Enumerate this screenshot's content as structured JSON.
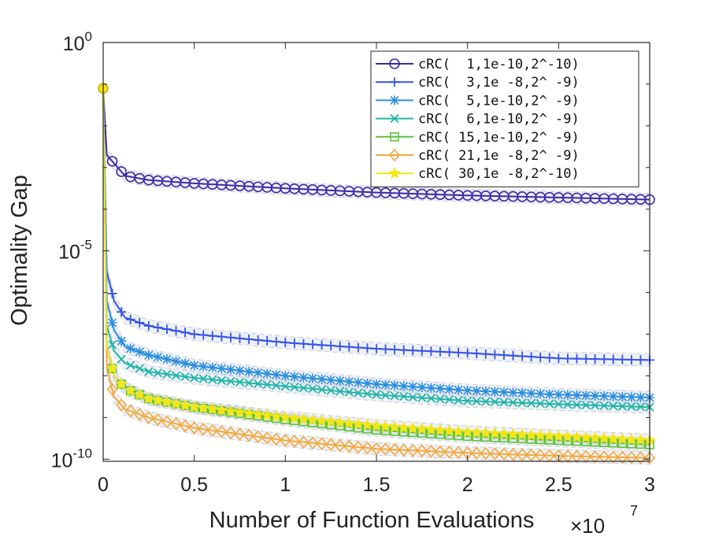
{
  "chart_data": {
    "type": "line",
    "xlabel": "Number of Function Evaluations",
    "x_multiplier": "×10",
    "x_multiplier_exp": "7",
    "ylabel": "Optimality Gap",
    "yscale": "log",
    "xlim": [
      0,
      3
    ],
    "ylim_log10": [
      -10.05,
      0
    ],
    "x_ticks": [
      "0",
      "0.5",
      "1",
      "1.5",
      "2",
      "2.5",
      "3"
    ],
    "y_ticks": [
      {
        "base": "10",
        "exp": "0",
        "log": 0
      },
      {
        "base": "10",
        "exp": "-5",
        "log": -5
      },
      {
        "base": "10",
        "exp": "-10",
        "log": -10
      }
    ],
    "legend_position": "top-right",
    "grid": false,
    "start_point": {
      "x": 0,
      "log10_y": -1.1
    },
    "series": [
      {
        "name": "cRC(  1,1e-10,2^-10)",
        "color": "#3a2aa6",
        "marker": "circle",
        "x": [
          0,
          0.02,
          0.06,
          0.12,
          0.25,
          0.5,
          1.0,
          1.5,
          2.0,
          2.5,
          3.0
        ],
        "log10_y": [
          -1.1,
          -2.7,
          -2.9,
          -3.2,
          -3.3,
          -3.38,
          -3.5,
          -3.6,
          -3.67,
          -3.72,
          -3.77
        ]
      },
      {
        "name": "cRC(  3,1e -8,2^ -9)",
        "color": "#3554e6",
        "marker": "plus",
        "x": [
          0,
          0.02,
          0.06,
          0.12,
          0.25,
          0.5,
          1.0,
          1.5,
          2.0,
          2.5,
          3.0
        ],
        "log10_y": [
          -1.1,
          -5.5,
          -6.2,
          -6.6,
          -6.8,
          -7.0,
          -7.2,
          -7.35,
          -7.45,
          -7.58,
          -7.62
        ]
      },
      {
        "name": "cRC(  5,1e-10,2^ -9)",
        "color": "#2a8fe0",
        "marker": "asterisk",
        "x": [
          0,
          0.02,
          0.06,
          0.12,
          0.25,
          0.5,
          1.0,
          1.5,
          2.0,
          2.5,
          3.0
        ],
        "log10_y": [
          -1.1,
          -6.2,
          -6.9,
          -7.3,
          -7.5,
          -7.75,
          -8.0,
          -8.2,
          -8.35,
          -8.45,
          -8.52
        ]
      },
      {
        "name": "cRC(  6,1e-10,2^ -9)",
        "color": "#22b5a8",
        "marker": "cross",
        "x": [
          0,
          0.02,
          0.06,
          0.12,
          0.25,
          0.5,
          1.0,
          1.5,
          2.0,
          2.5,
          3.0
        ],
        "log10_y": [
          -1.1,
          -6.8,
          -7.4,
          -7.7,
          -7.9,
          -8.05,
          -8.25,
          -8.45,
          -8.6,
          -8.68,
          -8.75
        ]
      },
      {
        "name": "cRC( 15,1e-10,2^ -9)",
        "color": "#5cc23c",
        "marker": "square",
        "x": [
          0,
          0.02,
          0.06,
          0.12,
          0.25,
          0.5,
          1.0,
          1.5,
          2.0,
          2.5,
          3.0
        ],
        "log10_y": [
          -1.1,
          -7.3,
          -8.0,
          -8.3,
          -8.55,
          -8.75,
          -9.05,
          -9.3,
          -9.45,
          -9.55,
          -9.65
        ]
      },
      {
        "name": "cRC( 21,1e -8,2^ -9)",
        "color": "#f2a93b",
        "marker": "diamond",
        "x": [
          0,
          0.02,
          0.06,
          0.12,
          0.25,
          0.5,
          1.0,
          1.5,
          2.0,
          2.5,
          3.0
        ],
        "log10_y": [
          -1.1,
          -7.8,
          -8.5,
          -8.8,
          -9.0,
          -9.25,
          -9.55,
          -9.75,
          -9.85,
          -9.92,
          -9.97
        ]
      },
      {
        "name": "cRC( 30,1e -8,2^-10)",
        "color": "#f2e616",
        "marker": "star",
        "x": [
          0,
          0.02,
          0.06,
          0.12,
          0.25,
          0.5,
          1.0,
          1.5,
          2.0,
          2.5,
          3.0
        ],
        "log10_y": [
          -1.1,
          -7.3,
          -8.0,
          -8.3,
          -8.55,
          -8.75,
          -9.0,
          -9.2,
          -9.35,
          -9.45,
          -9.55
        ]
      }
    ]
  }
}
